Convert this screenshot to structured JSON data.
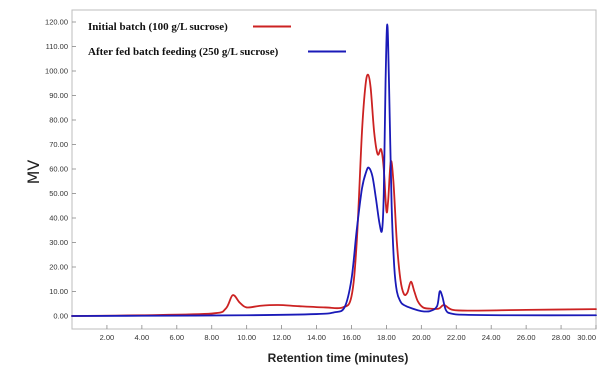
{
  "chart_data": {
    "type": "line",
    "title": "",
    "xlabel": "Retention time (minutes)",
    "ylabel": "MV",
    "xlim": [
      0,
      30
    ],
    "ylim": [
      0,
      125
    ],
    "x_ticks": [
      2,
      4,
      6,
      8,
      10,
      12,
      14,
      16,
      18,
      20,
      22,
      24,
      26,
      28,
      30
    ],
    "x_tick_labels": [
      "2.00",
      "4.00",
      "6.00",
      "8.00",
      "10.00",
      "12.00",
      "14.00",
      "16.00",
      "18.00",
      "20.00",
      "22.00",
      "24.00",
      "26.00",
      "28.00",
      "30.00"
    ],
    "y_ticks": [
      0,
      10,
      20,
      30,
      40,
      50,
      60,
      70,
      80,
      90,
      100,
      110,
      120
    ],
    "y_tick_labels": [
      "0.00",
      "10.00",
      "20.00",
      "30.00",
      "40.00",
      "50.00",
      "60.00",
      "70.00",
      "80.00",
      "90.00",
      "100.00",
      "110.00",
      "120.00"
    ],
    "grid": false,
    "legend_position": "top-left",
    "series": [
      {
        "name": "Initial batch (100 g/L sucrose)",
        "color": "#cc2222",
        "x": [
          0,
          4,
          8,
          8.8,
          9.2,
          9.6,
          10,
          10.8,
          11.8,
          13,
          14.5,
          15.5,
          16,
          16.3,
          16.6,
          16.8,
          16.95,
          17.1,
          17.3,
          17.5,
          17.7,
          17.85,
          18.0,
          18.1,
          18.25,
          18.4,
          18.6,
          18.8,
          19.0,
          19.2,
          19.4,
          19.6,
          19.8,
          20.1,
          20.5,
          21.0,
          21.3,
          21.8,
          23,
          26,
          30
        ],
        "y": [
          0,
          0.3,
          1,
          3,
          8.5,
          5.5,
          3.5,
          4.2,
          4.5,
          4,
          3.5,
          3.5,
          8,
          30,
          75,
          94,
          98.5,
          93,
          75,
          66,
          68,
          60,
          43,
          47,
          63,
          55,
          30,
          15,
          9,
          9.5,
          14,
          10,
          6,
          3.5,
          3,
          3,
          4.5,
          2.5,
          2.2,
          2.5,
          2.8
        ]
      },
      {
        "name": "After fed batch feeding (250 g/L sucrose)",
        "color": "#1a1ab8",
        "x": [
          0,
          4,
          10,
          14,
          15,
          15.6,
          16.0,
          16.3,
          16.6,
          16.85,
          17.0,
          17.2,
          17.4,
          17.6,
          17.75,
          17.85,
          17.95,
          18.05,
          18.15,
          18.3,
          18.45,
          18.6,
          18.8,
          19.0,
          19.5,
          20.0,
          20.5,
          20.9,
          21.05,
          21.2,
          21.4,
          21.7,
          22.5,
          25,
          30
        ],
        "y": [
          0,
          0.1,
          0.3,
          0.8,
          1.5,
          3.5,
          15,
          35,
          52,
          59,
          60.5,
          57,
          48,
          38,
          35,
          50,
          95,
          119,
          95,
          45,
          20,
          10,
          6,
          4.5,
          3,
          2,
          2,
          4,
          10,
          8,
          2.5,
          1,
          0.5,
          0.3,
          0.3
        ]
      }
    ]
  }
}
